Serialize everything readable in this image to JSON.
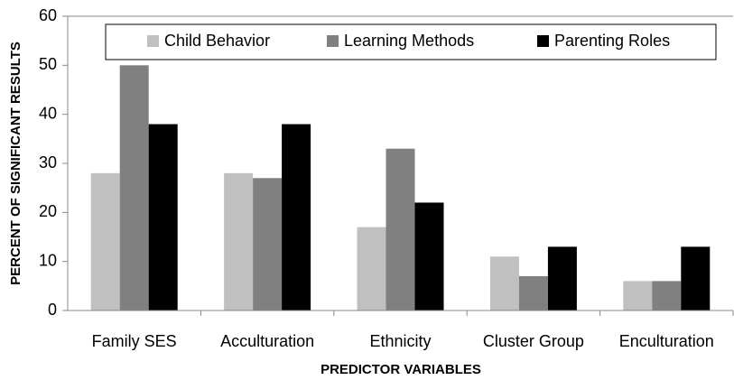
{
  "chart_data": {
    "type": "bar",
    "xlabel": "PREDICTOR VARIABLES",
    "ylabel": "PERCENT OF SIGNIFICANT RESULTS",
    "categories": [
      "Family SES",
      "Acculturation",
      "Ethnicity",
      "Cluster Group",
      "Enculturation"
    ],
    "series": [
      {
        "name": "Child Behavior",
        "color": "#c0c0c0",
        "values": [
          28,
          28,
          17,
          11,
          6
        ]
      },
      {
        "name": "Learning Methods",
        "color": "#808080",
        "values": [
          50,
          27,
          33,
          7,
          6
        ]
      },
      {
        "name": "Parenting Roles",
        "color": "#000000",
        "values": [
          38,
          38,
          22,
          13,
          13
        ]
      }
    ],
    "ylim": [
      0,
      60
    ],
    "yticks": [
      0,
      10,
      20,
      30,
      40,
      50,
      60
    ],
    "grid": false,
    "legend": "top"
  }
}
